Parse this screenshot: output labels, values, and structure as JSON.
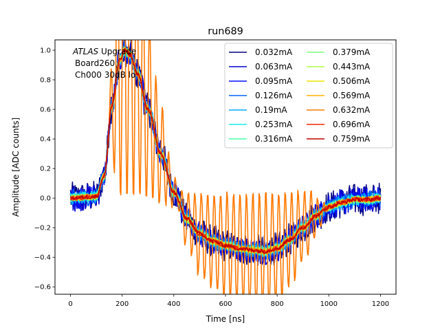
{
  "chart_data": {
    "type": "line",
    "title": "run689",
    "xlabel": "Time [ns]",
    "ylabel": "Amplitude [ADC counts]",
    "xlim": [
      -60,
      1260
    ],
    "ylim": [
      -0.65,
      1.07
    ],
    "xticks": [
      0,
      200,
      400,
      600,
      800,
      1000,
      1200
    ],
    "yticks": [
      -0.6,
      -0.4,
      -0.2,
      0.0,
      0.2,
      0.4,
      0.6,
      0.8,
      1.0
    ],
    "xtick_labels": [
      "0",
      "200",
      "400",
      "600",
      "800",
      "1000",
      "1200"
    ],
    "ytick_labels": [
      "−0.6",
      "−0.4",
      "−0.2",
      "0.0",
      "0.2",
      "0.4",
      "0.6",
      "0.8",
      "1.0"
    ],
    "grid": false,
    "legend_position": "top-right",
    "legend_columns": 2,
    "annotation": {
      "italic": "ATLAS",
      "rest": " Upgrade",
      "line2": "Board260",
      "line3": "Ch000 30dB lo"
    },
    "pulse_shape": {
      "x": [
        0,
        100,
        130,
        160,
        190,
        210,
        230,
        260,
        300,
        350,
        400,
        450,
        500,
        550,
        600,
        650,
        700,
        750,
        800,
        850,
        900,
        950,
        1000,
        1050,
        1100,
        1150,
        1200
      ],
      "y": [
        0.0,
        0.01,
        0.15,
        0.62,
        0.93,
        1.0,
        0.97,
        0.84,
        0.6,
        0.3,
        0.04,
        -0.14,
        -0.24,
        -0.29,
        -0.32,
        -0.34,
        -0.35,
        -0.36,
        -0.34,
        -0.28,
        -0.2,
        -0.12,
        -0.06,
        -0.03,
        -0.01,
        -0.01,
        0.0
      ]
    },
    "series": [
      {
        "name": "0.032mA",
        "color": "#00007f",
        "noise": 0.11
      },
      {
        "name": "0.063mA",
        "color": "#0000d0",
        "noise": 0.09
      },
      {
        "name": "0.095mA",
        "color": "#0010ff",
        "noise": 0.075
      },
      {
        "name": "0.126mA",
        "color": "#0060ff",
        "noise": 0.06
      },
      {
        "name": "0.19mA",
        "color": "#00a8ff",
        "noise": 0.045
      },
      {
        "name": "0.253mA",
        "color": "#18ebeb",
        "noise": 0.036
      },
      {
        "name": "0.316mA",
        "color": "#4dffaa",
        "noise": 0.03
      },
      {
        "name": "0.379mA",
        "color": "#7dff7a",
        "noise": 0.026
      },
      {
        "name": "0.443mA",
        "color": "#b0ff46",
        "noise": 0.022
      },
      {
        "name": "0.506mA",
        "color": "#ede300",
        "noise": 0.02
      },
      {
        "name": "0.569mA",
        "color": "#ffb000",
        "noise": 0.018
      },
      {
        "name": "0.632mA",
        "color": "#ff7800",
        "noise": 0.02,
        "oscillating": true
      },
      {
        "name": "0.696mA",
        "color": "#f02800",
        "noise": 0.015
      },
      {
        "name": "0.759mA",
        "color": "#c00000",
        "noise": 0.014
      }
    ]
  }
}
